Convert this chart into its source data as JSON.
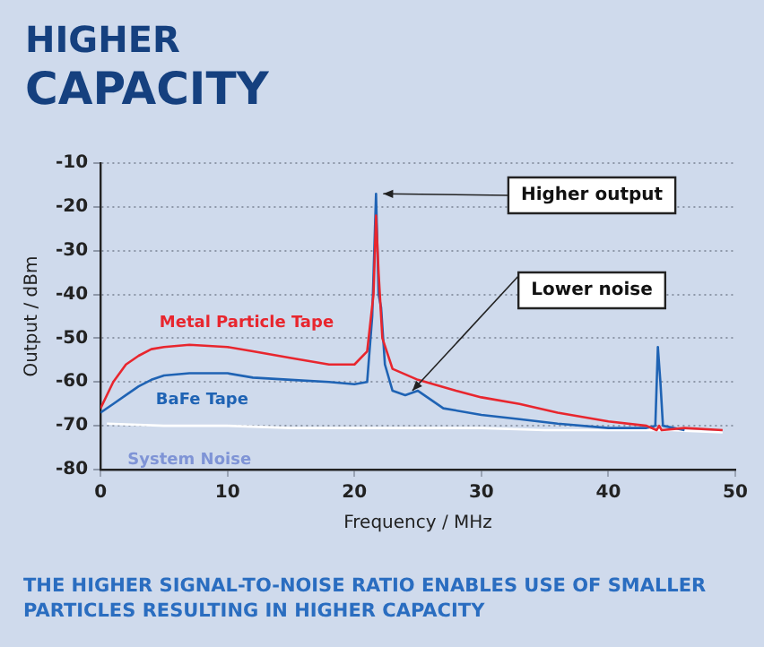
{
  "chart_data": {
    "type": "line",
    "title": "HIGHER CAPACITY",
    "xlabel": "Frequency / MHz",
    "ylabel": "Output / dBm",
    "xlim": [
      0,
      50
    ],
    "xticks": [
      0,
      10,
      20,
      30,
      40,
      50
    ],
    "ylim": [
      -80,
      -10
    ],
    "yticks": [
      -80,
      -70,
      -60,
      -50,
      -40,
      -30,
      -20,
      -10
    ],
    "grid": "y",
    "legend": false,
    "marker": "none",
    "line_style": "solid",
    "series": [
      {
        "name": "Metal Particle Tape",
        "color": "#e8262e",
        "x": [
          0,
          1,
          2,
          3,
          4,
          5,
          7,
          10,
          12,
          15,
          18,
          20,
          21,
          21.5,
          21.7,
          21.9,
          22.2,
          23,
          25,
          28,
          30,
          33,
          36,
          40,
          43,
          43.8,
          44,
          44.2,
          46,
          49
        ],
        "values": [
          -66,
          -60,
          -56,
          -54,
          -52.5,
          -52,
          -51.5,
          -52,
          -53,
          -54.5,
          -56,
          -56,
          -53,
          -40,
          -22,
          -35,
          -50,
          -57,
          -59.5,
          -62,
          -63.5,
          -65,
          -67,
          -69,
          -70,
          -71,
          -70,
          -71,
          -70.5,
          -71
        ]
      },
      {
        "name": "BaFe Tape",
        "color": "#1f63b4",
        "x": [
          0,
          1,
          2,
          3,
          4,
          5,
          7,
          10,
          12,
          15,
          18,
          20,
          21,
          21.4,
          21.7,
          21.9,
          22.1,
          22.4,
          23,
          24,
          25,
          26,
          27,
          30,
          33,
          36,
          40,
          43,
          43.7,
          43.9,
          44.1,
          44.3,
          46
        ],
        "values": [
          -67,
          -65,
          -63,
          -61,
          -59.5,
          -58.5,
          -58,
          -58,
          -59,
          -59.5,
          -60,
          -60.5,
          -60,
          -45,
          -17,
          -40,
          -43,
          -56,
          -62,
          -63,
          -62,
          -64,
          -66,
          -67.5,
          -68.5,
          -69.5,
          -70.5,
          -70.5,
          -70,
          -52,
          -60,
          -70,
          -71
        ]
      },
      {
        "name": "System Noise",
        "color": "#ffffff",
        "x": [
          0.5,
          5,
          10,
          15,
          20,
          25,
          30,
          35,
          40,
          45,
          49
        ],
        "values": [
          -69.5,
          -70,
          -70,
          -70.5,
          -70.5,
          -70.5,
          -70.5,
          -71,
          -71,
          -71,
          -71.5
        ]
      }
    ],
    "annotations": [
      {
        "text": "Higher output",
        "x": 21.7,
        "y": -17
      },
      {
        "text": "Lower noise",
        "x": 24,
        "y": -62
      },
      "THE HIGHER SIGNAL-TO-NOISE RATIO ENABLES USE OF SMALLER PARTICLES RESULTING IN HIGHER CAPACITY"
    ]
  }
}
